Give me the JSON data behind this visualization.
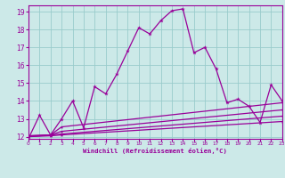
{
  "xlabel": "Windchill (Refroidissement éolien,°C)",
  "bg_color": "#cce9e8",
  "line_color": "#990099",
  "grid_color": "#99cccc",
  "xmin": 0,
  "xmax": 23,
  "ymin": 12,
  "ymax": 19,
  "xticks": [
    0,
    1,
    2,
    3,
    4,
    5,
    6,
    7,
    8,
    9,
    10,
    11,
    12,
    13,
    14,
    15,
    16,
    17,
    18,
    19,
    20,
    21,
    22,
    23
  ],
  "yticks": [
    12,
    13,
    14,
    15,
    16,
    17,
    18,
    19
  ],
  "line1": [
    [
      0,
      11.9
    ],
    [
      1,
      13.2
    ],
    [
      2,
      12.1
    ],
    [
      3,
      13.0
    ],
    [
      4,
      14.0
    ],
    [
      5,
      12.5
    ],
    [
      6,
      14.8
    ],
    [
      7,
      14.4
    ],
    [
      8,
      15.5
    ],
    [
      9,
      16.8
    ],
    [
      10,
      18.1
    ],
    [
      11,
      17.75
    ],
    [
      12,
      18.5
    ],
    [
      13,
      19.05
    ],
    [
      14,
      19.15
    ],
    [
      15,
      16.7
    ],
    [
      16,
      17.0
    ],
    [
      17,
      15.8
    ],
    [
      18,
      13.9
    ],
    [
      19,
      14.1
    ],
    [
      20,
      13.7
    ],
    [
      21,
      12.8
    ],
    [
      22,
      14.9
    ],
    [
      23,
      14.0
    ]
  ],
  "line2": [
    [
      0,
      12.05
    ],
    [
      2,
      12.1
    ],
    [
      3,
      12.55
    ],
    [
      23,
      13.9
    ]
  ],
  "line3": [
    [
      0,
      12.05
    ],
    [
      2,
      12.1
    ],
    [
      3,
      12.3
    ],
    [
      23,
      13.5
    ]
  ],
  "line4": [
    [
      0,
      12.0
    ],
    [
      2,
      12.1
    ],
    [
      3,
      12.15
    ],
    [
      23,
      13.15
    ]
  ],
  "line5": [
    [
      0,
      12.0
    ],
    [
      2,
      12.05
    ],
    [
      3,
      12.1
    ],
    [
      23,
      12.85
    ]
  ]
}
